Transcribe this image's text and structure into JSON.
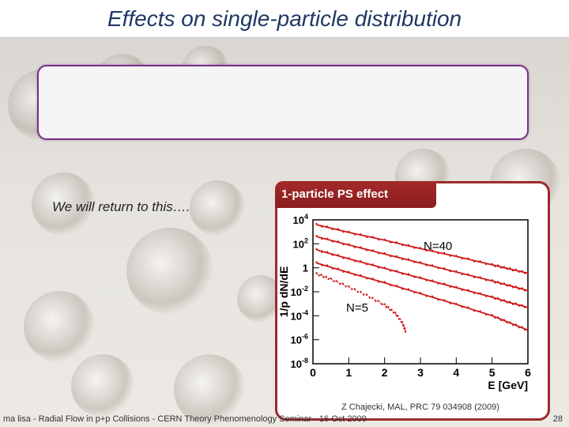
{
  "slide": {
    "title": "Effects on single-particle distribution",
    "return_note": "We will return to this….",
    "panel_tab": "1-particle PS effect",
    "citation": "Z Chajecki, MAL, PRC 79 034908 (2009)",
    "footer": "ma lisa - Radial Flow in p+p Collisions - CERN Theory Phenomenology Seminar - 16 Oct 2009",
    "page_number": "28"
  },
  "chart_data": {
    "type": "scatter",
    "xlabel": "E [GeV]",
    "ylabel": "1/p dN/dE",
    "xlim": [
      0,
      6
    ],
    "ylim_log10": [
      -8,
      4
    ],
    "y_scale": "log",
    "x_ticks": [
      "0",
      "1",
      "2",
      "3",
      "4",
      "5",
      "6"
    ],
    "y_ticks": [
      {
        "base": "10",
        "exp": "4",
        "value": 4
      },
      {
        "base": "10",
        "exp": "2",
        "value": 2
      },
      {
        "base": "1",
        "exp": "",
        "value": 0
      },
      {
        "base": "10",
        "exp": "-2",
        "value": -2
      },
      {
        "base": "10",
        "exp": "-4",
        "value": -4
      },
      {
        "base": "10",
        "exp": "-6",
        "value": -6
      },
      {
        "base": "10",
        "exp": "-8",
        "value": -8
      }
    ],
    "annotations": [
      "N=40",
      "N=5"
    ],
    "marker_color": "#d01818",
    "series": [
      {
        "x": [
          0.1,
          1,
          2,
          3,
          4,
          5,
          5.5,
          6
        ],
        "log10y": [
          3.6,
          2.95,
          2.3,
          1.6,
          0.95,
          0.25,
          -0.1,
          -0.45
        ]
      },
      {
        "x": [
          0.1,
          1,
          2,
          3,
          4,
          5,
          5.5,
          6
        ],
        "log10y": [
          2.6,
          1.9,
          1.15,
          0.4,
          -0.35,
          -1.1,
          -1.5,
          -1.9
        ]
      },
      {
        "x": [
          0.1,
          1,
          2,
          3,
          4,
          5,
          5.5,
          6
        ],
        "log10y": [
          1.5,
          0.75,
          -0.05,
          -0.85,
          -1.65,
          -2.45,
          -2.9,
          -3.3
        ]
      },
      {
        "x": [
          0.1,
          1,
          2,
          3,
          4,
          5,
          5.5,
          6
        ],
        "log10y": [
          0.4,
          -0.4,
          -1.25,
          -2.15,
          -3.05,
          -4.0,
          -4.6,
          -5.2
        ]
      },
      {
        "x": [
          0.1,
          0.5,
          1,
          1.5,
          2,
          2.3,
          2.5,
          2.6
        ],
        "log10y": [
          -0.5,
          -0.95,
          -1.6,
          -2.3,
          -3.1,
          -3.8,
          -4.6,
          -5.4
        ]
      }
    ]
  }
}
